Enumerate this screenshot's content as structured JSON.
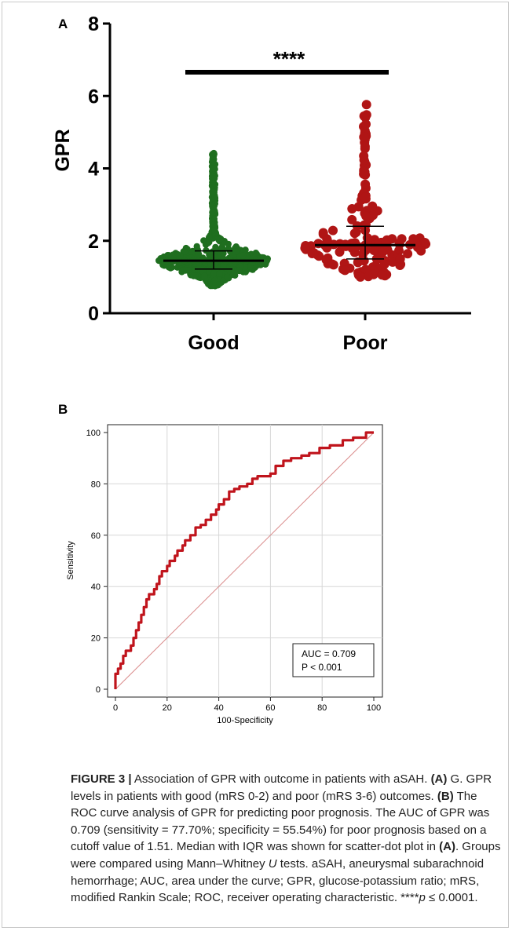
{
  "figure": {
    "panel_a_label": "A",
    "panel_b_label": "B",
    "caption": {
      "fig_label": "FIGURE 3 |",
      "t1": " Association of GPR with outcome in patients with aSAH. ",
      "r1": "(A)",
      "t2": " G. GPR levels in patients with good (mRS 0-2) and poor (mRS 3-6) outcomes. ",
      "r2": "(B)",
      "t3": " The ROC curve analysis of GPR for predicting poor prognosis. The AUC of GPR was 0.709 (sensitivity = 77.70%; specificity = 55.54%) for poor prognosis based on a cutoff value of 1.51. Median with IQR was shown for scatter-dot plot in ",
      "r3": "(A)",
      "t4": ". Groups were compared using Mann–Whitney ",
      "u_italic": "U",
      "t5": " tests. aSAH, aneurysmal subarachnoid hemorrhage; AUC, area under the curve; GPR, glucose-potassium ratio; mRS, modified Rankin Scale; ROC, receiver operating characteristic. ****",
      "p_italic": "p",
      "t6": " ≤ 0.0001."
    }
  },
  "chart_data": [
    {
      "type": "scatter",
      "panel": "A",
      "ylabel": "GPR",
      "xlabel": "",
      "categories": [
        "Good",
        "Poor"
      ],
      "ylim": [
        0,
        8
      ],
      "yticks": [
        0,
        2,
        4,
        6,
        8
      ],
      "significance": "****",
      "series": [
        {
          "name": "Good",
          "color": "#1f6e1f",
          "median": 1.45,
          "q1": 1.22,
          "q3": 1.72,
          "min": 0.75,
          "max": 4.42,
          "n": 820
        },
        {
          "name": "Poor",
          "color": "#b01515",
          "median": 1.88,
          "q1": 1.5,
          "q3": 2.4,
          "min": 1.0,
          "max": 5.76,
          "n": 160
        }
      ]
    },
    {
      "type": "line",
      "panel": "B",
      "xlabel": "100-Specificity",
      "ylabel": "Sensitivity",
      "xlim": [
        0,
        100
      ],
      "ylim": [
        0,
        100
      ],
      "xticks": [
        0,
        20,
        40,
        60,
        80,
        100
      ],
      "yticks": [
        0,
        20,
        40,
        60,
        80,
        100
      ],
      "grid": true,
      "color": "#c0141c",
      "reference_color": "#d98a8a",
      "roc": [
        [
          0,
          0
        ],
        [
          0,
          3
        ],
        [
          0,
          6
        ],
        [
          1,
          8
        ],
        [
          2,
          10
        ],
        [
          3,
          13
        ],
        [
          4,
          15
        ],
        [
          6,
          17
        ],
        [
          7,
          20
        ],
        [
          8,
          23
        ],
        [
          9,
          26
        ],
        [
          10,
          29
        ],
        [
          11,
          32
        ],
        [
          12,
          35
        ],
        [
          13,
          37
        ],
        [
          15,
          39
        ],
        [
          16,
          41
        ],
        [
          17,
          44
        ],
        [
          18,
          46
        ],
        [
          20,
          48
        ],
        [
          21,
          50
        ],
        [
          23,
          52
        ],
        [
          24,
          54
        ],
        [
          26,
          56
        ],
        [
          27,
          58
        ],
        [
          29,
          60
        ],
        [
          31,
          63
        ],
        [
          33,
          64
        ],
        [
          35,
          66
        ],
        [
          37,
          68
        ],
        [
          39,
          70
        ],
        [
          40,
          72
        ],
        [
          42,
          74
        ],
        [
          44,
          77
        ],
        [
          46,
          78
        ],
        [
          48,
          79
        ],
        [
          51,
          80
        ],
        [
          53,
          82
        ],
        [
          55,
          83
        ],
        [
          60,
          84
        ],
        [
          62,
          87
        ],
        [
          65,
          89
        ],
        [
          68,
          90
        ],
        [
          72,
          91
        ],
        [
          75,
          92
        ],
        [
          79,
          94
        ],
        [
          83,
          95
        ],
        [
          88,
          97
        ],
        [
          92,
          98
        ],
        [
          96,
          98
        ],
        [
          97,
          100
        ],
        [
          100,
          100
        ]
      ],
      "annotation": {
        "line1": "AUC = 0.709",
        "line2": "P < 0.001"
      }
    }
  ]
}
